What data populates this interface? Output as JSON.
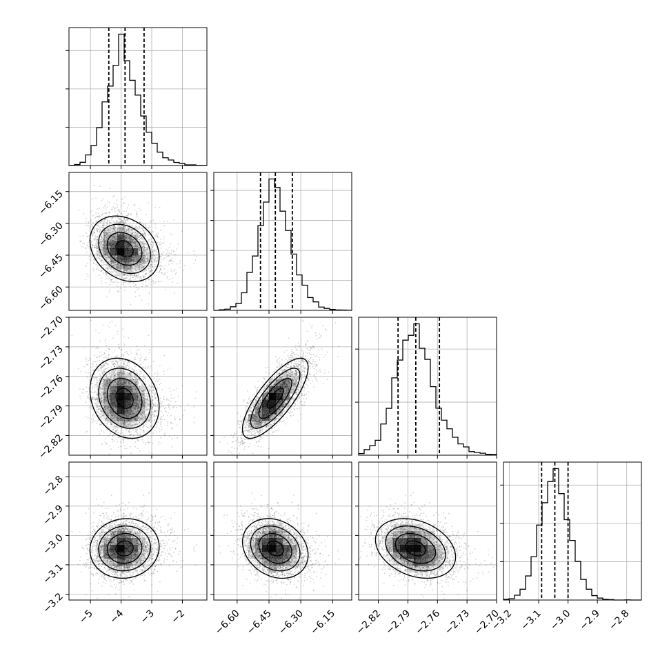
{
  "chart_data": {
    "type": "corner",
    "title": "",
    "parameters": [
      {
        "index": 0,
        "range": [
          -5.7,
          -1.2
        ],
        "ticks": [
          -5,
          -4,
          -3,
          -2
        ],
        "tick_labels": [
          "−5",
          "−4",
          "−3",
          "−2"
        ],
        "quantiles": [
          -4.4,
          -3.87,
          -3.25
        ],
        "mean": -3.87,
        "sd": 0.55,
        "skew": 0.4,
        "hist_ticks": 3
      },
      {
        "index": 1,
        "range": [
          -6.71,
          -6.06
        ],
        "ticks": [
          -6.6,
          -6.45,
          -6.3,
          -6.15
        ],
        "tick_labels": [
          "−6.60",
          "−6.45",
          "−6.30",
          "−6.15"
        ],
        "quantiles": [
          -6.49,
          -6.42,
          -6.34
        ],
        "mean": -6.42,
        "sd": 0.075,
        "skew": 0.3,
        "hist_ticks": 4
      },
      {
        "index": 2,
        "range": [
          -2.84,
          -2.7
        ],
        "ticks": [
          -2.82,
          -2.79,
          -2.76,
          -2.73,
          -2.7
        ],
        "tick_labels": [
          "−2.82",
          "−2.79",
          "−2.76",
          "−2.73",
          "−2.70"
        ],
        "quantiles": [
          -2.8,
          -2.782,
          -2.758
        ],
        "mean": -2.782,
        "sd": 0.02,
        "skew": 0.35,
        "hist_ticks": 2
      },
      {
        "index": 3,
        "range": [
          -3.22,
          -2.75
        ],
        "ticks": [
          -3.2,
          -3.1,
          -3.0,
          -2.9,
          -2.8
        ],
        "tick_labels": [
          "−3.2",
          "−3.1",
          "−3.0",
          "−2.9",
          "−2.8"
        ],
        "quantiles": [
          -3.09,
          -3.045,
          -3.0
        ],
        "mean": -3.045,
        "sd": 0.05,
        "skew": 0.2,
        "hist_ticks": 3
      }
    ],
    "correlations": {
      "1-0": -0.25,
      "2-0": -0.2,
      "2-1": 0.75,
      "3-0": 0.05,
      "3-1": 0.0,
      "3-2": -0.3
    },
    "xlabels": [
      "",
      "",
      "",
      ""
    ],
    "ylabels": [
      "",
      "",
      "",
      ""
    ],
    "grid": true,
    "series_colors": {
      "line": "#000000",
      "density": "#000000",
      "points": "#000000"
    }
  }
}
